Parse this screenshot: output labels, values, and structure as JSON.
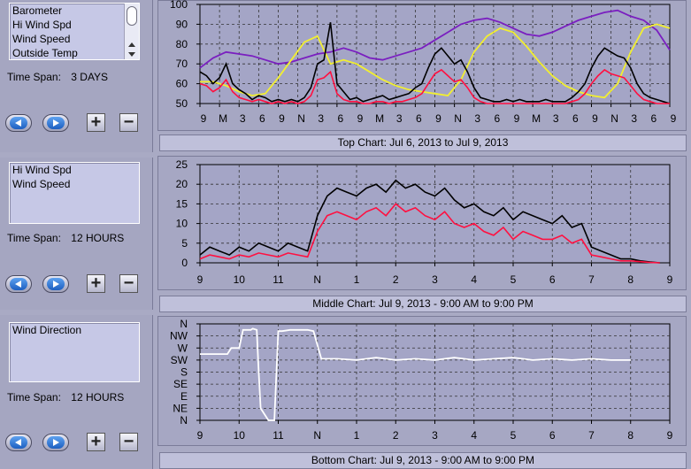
{
  "panels": [
    {
      "list_items": [
        "Barometer",
        "Hi Wind Spd",
        "Wind Speed",
        "Outside Temp"
      ],
      "has_scroll": true,
      "time_span_label": "Time Span:",
      "time_span_value": "3 DAYS"
    },
    {
      "list_items": [
        "Hi Wind Spd",
        "Wind Speed"
      ],
      "has_scroll": false,
      "time_span_label": "Time Span:",
      "time_span_value": "12 HOURS"
    },
    {
      "list_items": [
        "Wind Direction"
      ],
      "has_scroll": false,
      "time_span_label": "Time Span:",
      "time_span_value": "12 HOURS"
    }
  ],
  "controls": {
    "plus": "+",
    "minus": "−"
  },
  "chart_data": [
    {
      "type": "line",
      "id": "top",
      "caption": "Top Chart:  Jul 6, 2013  to  Jul 9, 2013",
      "ylim": [
        50,
        100
      ],
      "y_ticks": [
        50,
        60,
        70,
        80,
        90,
        100
      ],
      "x_tick_labels": [
        "9",
        "M",
        "3",
        "6",
        "9",
        "N",
        "3",
        "6",
        "9",
        "M",
        "3",
        "6",
        "9",
        "N",
        "3",
        "6",
        "9",
        "M",
        "3",
        "6",
        "9",
        "N",
        "3",
        "6",
        "9"
      ],
      "grid": true,
      "colors": {
        "hi_wind": "#000000",
        "wind": "#ff1040",
        "barometer": "#7a1fc0",
        "temp": "#f2ef30"
      },
      "series": [
        {
          "key": "barometer",
          "x": [
            0,
            2,
            4,
            6,
            8,
            10,
            12,
            14,
            16,
            18,
            20,
            22,
            24,
            26,
            28,
            30,
            32,
            34,
            36,
            38,
            40,
            42,
            44,
            46,
            48,
            50,
            52,
            54,
            56,
            58,
            60,
            62,
            64,
            66,
            68,
            70,
            72
          ],
          "values": [
            68,
            73,
            76,
            75,
            74,
            72,
            70,
            71,
            73,
            75,
            76,
            78,
            76,
            73,
            72,
            74,
            76,
            78,
            82,
            86,
            90,
            92,
            93,
            91,
            88,
            85,
            84,
            86,
            89,
            92,
            94,
            96,
            97,
            94,
            92,
            87,
            77
          ]
        },
        {
          "key": "temp",
          "x": [
            0,
            2,
            4,
            6,
            8,
            10,
            12,
            14,
            16,
            18,
            20,
            22,
            24,
            26,
            28,
            30,
            32,
            34,
            36,
            38,
            40,
            42,
            44,
            46,
            48,
            50,
            52,
            54,
            56,
            58,
            60,
            62,
            64,
            66,
            68,
            70,
            72
          ],
          "values": [
            61,
            61,
            59,
            56,
            54,
            55,
            63,
            72,
            81,
            84,
            70,
            72,
            70,
            66,
            62,
            59,
            57,
            56,
            55,
            54,
            62,
            76,
            84,
            88,
            86,
            79,
            71,
            64,
            59,
            56,
            54,
            53,
            60,
            76,
            88,
            90,
            88
          ]
        },
        {
          "key": "hi_wind",
          "x": [
            0,
            1,
            2,
            3,
            4,
            5,
            6,
            7,
            8,
            9,
            10,
            11,
            12,
            13,
            14,
            15,
            16,
            17,
            18,
            19,
            20,
            21,
            22,
            23,
            24,
            25,
            26,
            27,
            28,
            29,
            30,
            31,
            32,
            33,
            34,
            35,
            36,
            37,
            38,
            39,
            40,
            41,
            42,
            43,
            44,
            45,
            46,
            47,
            48,
            49,
            50,
            51,
            52,
            53,
            54,
            55,
            56,
            57,
            58,
            59,
            60,
            61,
            62,
            63,
            64,
            65,
            66,
            67,
            68,
            69,
            70,
            71,
            72
          ],
          "values": [
            66,
            64,
            60,
            63,
            70,
            60,
            57,
            55,
            52,
            54,
            53,
            51,
            52,
            51,
            52,
            51,
            53,
            58,
            70,
            72,
            91,
            60,
            56,
            52,
            53,
            51,
            52,
            53,
            54,
            52,
            53,
            54,
            55,
            58,
            60,
            68,
            75,
            78,
            74,
            70,
            72,
            66,
            58,
            53,
            52,
            51,
            51,
            52,
            51,
            52,
            51,
            51,
            51,
            52,
            51,
            51,
            51,
            53,
            56,
            60,
            68,
            74,
            78,
            76,
            74,
            73,
            68,
            60,
            55,
            53,
            52,
            51,
            50
          ]
        },
        {
          "key": "wind",
          "x": [
            0,
            1,
            2,
            3,
            4,
            5,
            6,
            7,
            8,
            9,
            10,
            11,
            12,
            13,
            14,
            15,
            16,
            17,
            18,
            19,
            20,
            21,
            22,
            23,
            24,
            25,
            26,
            27,
            28,
            29,
            30,
            31,
            32,
            33,
            34,
            35,
            36,
            37,
            38,
            39,
            40,
            41,
            42,
            43,
            44,
            45,
            46,
            47,
            48,
            49,
            50,
            51,
            52,
            53,
            54,
            55,
            56,
            57,
            58,
            59,
            60,
            61,
            62,
            63,
            64,
            65,
            66,
            67,
            68,
            69,
            70,
            71,
            72
          ],
          "values": [
            60,
            59,
            56,
            58,
            62,
            56,
            53,
            52,
            51,
            52,
            51,
            50,
            51,
            50,
            51,
            50,
            51,
            54,
            62,
            63,
            66,
            55,
            52,
            51,
            51,
            50,
            50,
            51,
            51,
            50,
            51,
            51,
            52,
            53,
            55,
            60,
            65,
            67,
            64,
            61,
            62,
            58,
            53,
            51,
            50,
            50,
            50,
            50,
            50,
            50,
            50,
            50,
            50,
            50,
            50,
            50,
            50,
            51,
            52,
            55,
            60,
            64,
            67,
            65,
            64,
            63,
            59,
            55,
            52,
            51,
            50,
            50,
            50
          ]
        }
      ]
    },
    {
      "type": "line",
      "id": "middle",
      "caption": "Middle Chart:  Jul 9, 2013 - 9:00 AM  to  9:00 PM",
      "ylim": [
        0,
        25
      ],
      "y_ticks": [
        0,
        5,
        10,
        15,
        20,
        25
      ],
      "x_tick_labels": [
        "9",
        "10",
        "11",
        "N",
        "1",
        "2",
        "3",
        "4",
        "5",
        "6",
        "7",
        "8",
        "9"
      ],
      "grid": true,
      "colors": {
        "hi_wind": "#000000",
        "wind": "#ff1040"
      },
      "series": [
        {
          "key": "hi_wind",
          "x": [
            0,
            0.25,
            0.5,
            0.75,
            1,
            1.25,
            1.5,
            1.75,
            2,
            2.25,
            2.5,
            2.75,
            3,
            3.25,
            3.5,
            3.75,
            4,
            4.25,
            4.5,
            4.75,
            5,
            5.25,
            5.5,
            5.75,
            6,
            6.25,
            6.5,
            6.75,
            7,
            7.25,
            7.5,
            7.75,
            8,
            8.25,
            8.5,
            8.75,
            9,
            9.25,
            9.5,
            9.75,
            10,
            10.25,
            10.5,
            10.75,
            11,
            11.25,
            11.5,
            11.75
          ],
          "values": [
            2,
            4,
            3,
            2,
            4,
            3,
            5,
            4,
            3,
            5,
            4,
            3,
            12,
            17,
            19,
            18,
            17,
            19,
            20,
            18,
            21,
            19,
            20,
            18,
            17,
            19,
            16,
            14,
            15,
            13,
            12,
            14,
            11,
            13,
            12,
            11,
            10,
            12,
            9,
            10,
            4,
            3,
            2,
            1,
            1,
            0.5,
            0.2,
            0
          ]
        },
        {
          "key": "wind",
          "x": [
            0,
            0.25,
            0.5,
            0.75,
            1,
            1.25,
            1.5,
            1.75,
            2,
            2.25,
            2.5,
            2.75,
            3,
            3.25,
            3.5,
            3.75,
            4,
            4.25,
            4.5,
            4.75,
            5,
            5.25,
            5.5,
            5.75,
            6,
            6.25,
            6.5,
            6.75,
            7,
            7.25,
            7.5,
            7.75,
            8,
            8.25,
            8.5,
            8.75,
            9,
            9.25,
            9.5,
            9.75,
            10,
            10.25,
            10.5,
            10.75,
            11,
            11.25,
            11.5,
            11.75
          ],
          "values": [
            1,
            2,
            1.5,
            1,
            2,
            1.5,
            2.5,
            2,
            1.5,
            2.5,
            2,
            1.5,
            8,
            12,
            13,
            12,
            11,
            13,
            14,
            12,
            15,
            13,
            14,
            12,
            11,
            13,
            10,
            9,
            10,
            8,
            7,
            9,
            6,
            8,
            7,
            6,
            6,
            7,
            5,
            6,
            2,
            1.5,
            1,
            0.5,
            0.5,
            0.3,
            0.1,
            0
          ]
        }
      ]
    },
    {
      "type": "line",
      "id": "bottom",
      "caption": "Bottom Chart:  Jul 9, 2013 - 9:00 AM  to  9:00 PM",
      "ylim": [
        0,
        8
      ],
      "y_ticks": [
        "N",
        "NE",
        "E",
        "SE",
        "S",
        "SW",
        "W",
        "NW",
        "N"
      ],
      "x_tick_labels": [
        "9",
        "10",
        "11",
        "N",
        "1",
        "2",
        "3",
        "4",
        "5",
        "6",
        "7",
        "8",
        "9"
      ],
      "grid": true,
      "colors": {
        "direction": "#ffffff"
      },
      "series": [
        {
          "key": "direction",
          "x": [
            0,
            0.7,
            0.8,
            1.0,
            1.1,
            1.3,
            1.35,
            1.45,
            1.5,
            1.55,
            1.75,
            1.8,
            1.9,
            2.0,
            2.1,
            2.3,
            2.6,
            2.75,
            2.9,
            3.1,
            3.5,
            4.0,
            4.5,
            5.0,
            5.5,
            6.0,
            6.5,
            7.0,
            7.5,
            8.0,
            8.5,
            9.0,
            9.5,
            10.0,
            10.5,
            11.0
          ],
          "values": [
            5.5,
            5.5,
            6,
            6,
            7.5,
            7.5,
            7.6,
            7.5,
            4,
            1,
            0,
            0,
            0,
            7.4,
            7.4,
            7.5,
            7.5,
            7.5,
            7.4,
            5.1,
            5.1,
            5.0,
            5.2,
            5.0,
            5.1,
            5.0,
            5.2,
            5.0,
            5.1,
            5.2,
            5.0,
            5.1,
            5.0,
            5.1,
            5.0,
            5.0
          ]
        }
      ]
    }
  ]
}
